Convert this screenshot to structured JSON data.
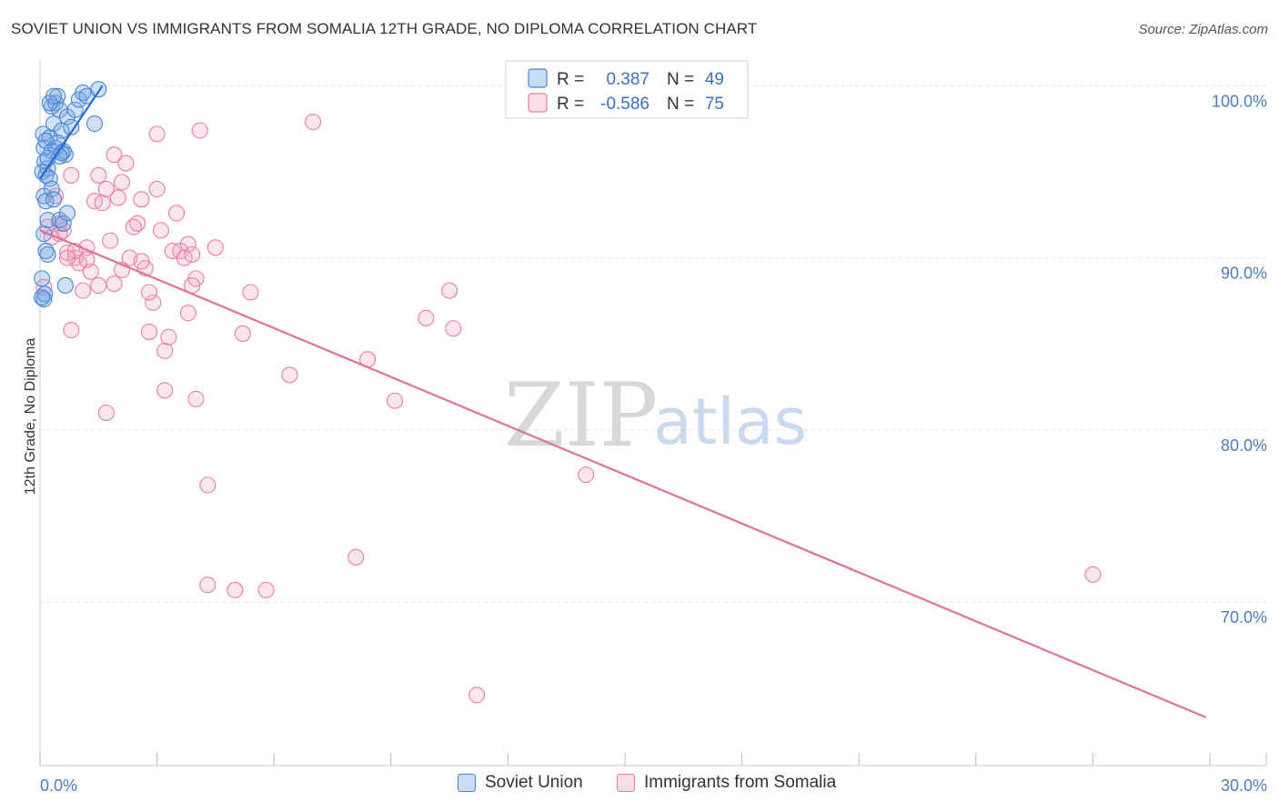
{
  "header": {
    "title": "SOVIET UNION VS IMMIGRANTS FROM SOMALIA 12TH GRADE, NO DIPLOMA CORRELATION CHART",
    "source": "Source: ZipAtlas.com"
  },
  "watermark": {
    "zip": "ZIP",
    "atlas": "atlas"
  },
  "colors": {
    "blue": "#4a86d8",
    "blue_fill": "rgba(120,165,230,0.35)",
    "blue_line": "#2a6bcc",
    "pink": "#e87fa2",
    "pink_fill": "rgba(245,170,195,0.30)",
    "pink_line": "#e0709a",
    "tick_text": "#4a7cc6"
  },
  "legend": {
    "r_label": "R =",
    "n_label": "N =",
    "series": [
      {
        "name": "Soviet Union",
        "r": "0.387",
        "n": "49"
      },
      {
        "name": "Immigrants from Somalia",
        "r": "-0.586",
        "n": "75"
      }
    ]
  },
  "chart_data": {
    "type": "scatter",
    "title": "SOVIET UNION VS IMMIGRANTS FROM SOMALIA 12TH GRADE, NO DIPLOMA CORRELATION CHART",
    "xlabel": "",
    "ylabel": "12th Grade, No Diploma",
    "xlim": [
      0,
      30
    ],
    "ylim": [
      60.5,
      101.5
    ],
    "x_tick_labels": [
      "0.0%",
      "30.0%"
    ],
    "y_ticks": [
      70,
      80,
      90,
      100
    ],
    "y_tick_labels": [
      "70.0%",
      "80.0%",
      "90.0%",
      "100.0%"
    ],
    "series": [
      {
        "name": "Soviet Union",
        "color": "blue",
        "trend": {
          "x0": 0.0,
          "y0": 94.6,
          "x1": 1.6,
          "y1": 100.0
        },
        "points": [
          [
            0.06,
            95.0
          ],
          [
            0.08,
            97.2
          ],
          [
            0.1,
            96.4
          ],
          [
            0.12,
            95.6
          ],
          [
            0.15,
            94.8
          ],
          [
            0.2,
            95.2
          ],
          [
            0.25,
            97.0
          ],
          [
            0.3,
            98.8
          ],
          [
            0.35,
            97.8
          ],
          [
            0.4,
            99.0
          ],
          [
            0.45,
            99.4
          ],
          [
            0.5,
            98.6
          ],
          [
            0.55,
            97.4
          ],
          [
            0.6,
            96.2
          ],
          [
            0.65,
            96.0
          ],
          [
            0.7,
            98.2
          ],
          [
            0.8,
            97.6
          ],
          [
            0.9,
            98.6
          ],
          [
            1.0,
            99.2
          ],
          [
            1.1,
            99.6
          ],
          [
            1.2,
            99.4
          ],
          [
            1.4,
            97.8
          ],
          [
            1.5,
            99.8
          ],
          [
            0.1,
            93.6
          ],
          [
            0.15,
            93.3
          ],
          [
            0.2,
            92.2
          ],
          [
            0.25,
            94.6
          ],
          [
            0.3,
            94.0
          ],
          [
            0.35,
            93.4
          ],
          [
            0.5,
            92.2
          ],
          [
            0.6,
            92.0
          ],
          [
            0.1,
            91.4
          ],
          [
            0.15,
            90.4
          ],
          [
            0.2,
            90.2
          ],
          [
            0.05,
            88.8
          ],
          [
            0.1,
            87.6
          ],
          [
            0.12,
            87.9
          ],
          [
            0.4,
            96.4
          ],
          [
            0.45,
            96.7
          ],
          [
            0.55,
            96.1
          ],
          [
            0.25,
            99.0
          ],
          [
            0.35,
            99.4
          ],
          [
            0.15,
            96.8
          ],
          [
            0.3,
            96.2
          ],
          [
            0.5,
            95.9
          ],
          [
            0.7,
            92.6
          ],
          [
            0.65,
            88.4
          ],
          [
            0.05,
            87.7
          ],
          [
            0.2,
            95.8
          ]
        ]
      },
      {
        "name": "Immigrants from Somalia",
        "color": "pink",
        "trend": {
          "x0": 0.0,
          "y0": 91.6,
          "x1": 29.9,
          "y1": 63.3
        },
        "points": [
          [
            0.1,
            88.3
          ],
          [
            0.2,
            91.8
          ],
          [
            0.3,
            91.2
          ],
          [
            0.4,
            93.6
          ],
          [
            0.5,
            92.0
          ],
          [
            0.6,
            91.6
          ],
          [
            0.7,
            90.3
          ],
          [
            0.8,
            94.8
          ],
          [
            0.9,
            90.0
          ],
          [
            1.0,
            89.7
          ],
          [
            1.1,
            88.1
          ],
          [
            1.2,
            90.6
          ],
          [
            1.3,
            89.2
          ],
          [
            1.4,
            93.3
          ],
          [
            1.5,
            94.8
          ],
          [
            1.6,
            93.2
          ],
          [
            1.7,
            94.0
          ],
          [
            1.8,
            91.0
          ],
          [
            1.9,
            88.5
          ],
          [
            2.0,
            93.5
          ],
          [
            2.1,
            94.4
          ],
          [
            2.2,
            95.5
          ],
          [
            2.3,
            90.0
          ],
          [
            2.4,
            91.8
          ],
          [
            2.5,
            92.0
          ],
          [
            2.6,
            93.4
          ],
          [
            2.7,
            89.4
          ],
          [
            2.8,
            85.7
          ],
          [
            2.9,
            87.4
          ],
          [
            3.0,
            94.0
          ],
          [
            3.1,
            91.6
          ],
          [
            3.2,
            84.6
          ],
          [
            3.3,
            85.4
          ],
          [
            3.4,
            90.4
          ],
          [
            3.5,
            92.6
          ],
          [
            3.6,
            90.4
          ],
          [
            3.7,
            90.0
          ],
          [
            3.8,
            90.8
          ],
          [
            3.9,
            90.2
          ],
          [
            4.0,
            88.8
          ],
          [
            4.1,
            97.4
          ],
          [
            4.3,
            76.8
          ],
          [
            4.5,
            90.6
          ],
          [
            5.2,
            85.6
          ],
          [
            5.4,
            88.0
          ],
          [
            6.4,
            83.2
          ],
          [
            7.0,
            97.9
          ],
          [
            8.1,
            72.6
          ],
          [
            8.4,
            84.1
          ],
          [
            9.1,
            81.7
          ],
          [
            9.9,
            86.5
          ],
          [
            10.5,
            88.1
          ],
          [
            10.6,
            85.9
          ],
          [
            11.2,
            64.6
          ],
          [
            14.0,
            77.4
          ],
          [
            27.0,
            71.6
          ],
          [
            0.8,
            85.8
          ],
          [
            1.7,
            81.0
          ],
          [
            2.1,
            89.3
          ],
          [
            2.8,
            88.0
          ],
          [
            3.2,
            82.3
          ],
          [
            3.9,
            88.4
          ],
          [
            4.0,
            81.8
          ],
          [
            4.3,
            71.0
          ],
          [
            5.0,
            70.7
          ],
          [
            5.8,
            70.7
          ],
          [
            0.5,
            91.4
          ],
          [
            0.9,
            90.4
          ],
          [
            1.2,
            89.9
          ],
          [
            1.9,
            96.0
          ],
          [
            3.0,
            97.2
          ],
          [
            3.8,
            86.8
          ],
          [
            2.6,
            89.8
          ],
          [
            0.7,
            90.0
          ],
          [
            1.5,
            88.4
          ]
        ]
      }
    ]
  }
}
